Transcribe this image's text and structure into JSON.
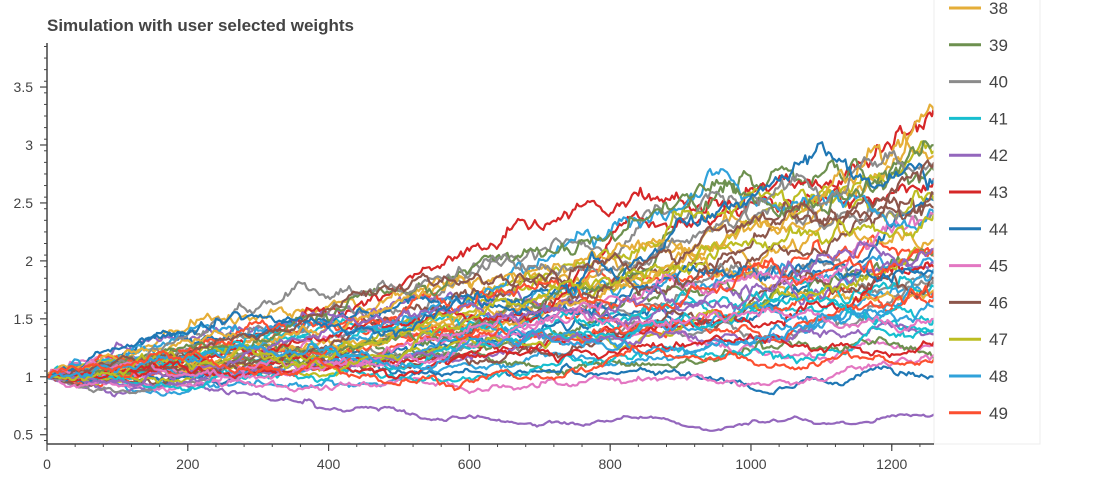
{
  "chart_data": {
    "type": "line",
    "title": "Simulation with user selected weights",
    "xlabel": "",
    "ylabel": "",
    "xlim": [
      0,
      1260
    ],
    "ylim": [
      0.42,
      3.88
    ],
    "x_ticks": [
      0,
      200,
      400,
      600,
      800,
      1000,
      1200
    ],
    "x_tick_labels": [
      "0",
      "200",
      "400",
      "600",
      "800",
      "1000",
      "1200"
    ],
    "y_ticks": [
      0.5,
      1,
      1.5,
      2,
      2.5,
      3,
      3.5
    ],
    "y_tick_labels": [
      "0.5",
      "1",
      "1.5",
      "2",
      "2.5",
      "3",
      "3.5"
    ],
    "grid": false,
    "legend_position": "right",
    "n_points_per_series": 1261,
    "x_step": 1,
    "series": [
      {
        "name": "38",
        "color": "#e5ae38",
        "start": 1.0,
        "end": 3.3
      },
      {
        "name": "39",
        "color": "#6d904f",
        "start": 1.0,
        "end": 3.0
      },
      {
        "name": "40",
        "color": "#8b8b8b",
        "start": 1.0,
        "end": 2.8
      },
      {
        "name": "41",
        "color": "#17becf",
        "start": 1.0,
        "end": 1.4
      },
      {
        "name": "42",
        "color": "#9467bd",
        "start": 1.0,
        "end": 2.1
      },
      {
        "name": "43",
        "color": "#d62728",
        "start": 1.0,
        "end": 1.3
      },
      {
        "name": "44",
        "color": "#1f77b4",
        "start": 1.0,
        "end": 2.7
      },
      {
        "name": "45",
        "color": "#e377c2",
        "start": 1.0,
        "end": 1.5
      },
      {
        "name": "46",
        "color": "#8c564b",
        "start": 1.0,
        "end": 2.85
      },
      {
        "name": "47",
        "color": "#bcbd22",
        "start": 1.0,
        "end": 2.4
      },
      {
        "name": "48",
        "color": "#30a2da",
        "start": 1.0,
        "end": 1.6
      },
      {
        "name": "49",
        "color": "#fc4f30",
        "start": 1.0,
        "end": 1.15
      }
    ]
  }
}
